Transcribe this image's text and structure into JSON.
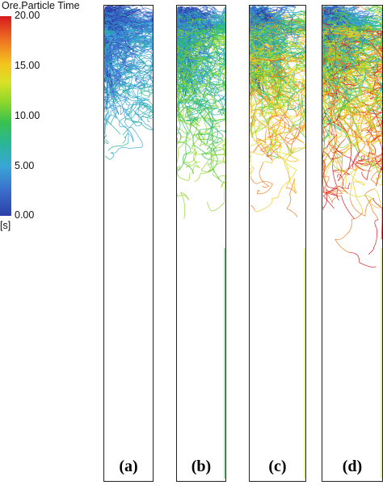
{
  "legend": {
    "title": "Ore.Particle Time",
    "ticks": [
      "20.00",
      "15.00",
      "10.00",
      "5.00",
      "0.00"
    ],
    "units": "[s]",
    "colors": [
      "#d7191c",
      "#f07a22",
      "#f5c41e",
      "#d9e226",
      "#8ed72a",
      "#39c24d",
      "#2ab59a",
      "#38a7d6",
      "#3b6fcd",
      "#2c40a8"
    ]
  },
  "panels": [
    {
      "label": "(a)",
      "max_time_shown": 6
    },
    {
      "label": "(b)",
      "max_time_shown": 12
    },
    {
      "label": "(c)",
      "max_time_shown": 18
    },
    {
      "label": "(d)",
      "max_time_shown": 20
    }
  ]
}
